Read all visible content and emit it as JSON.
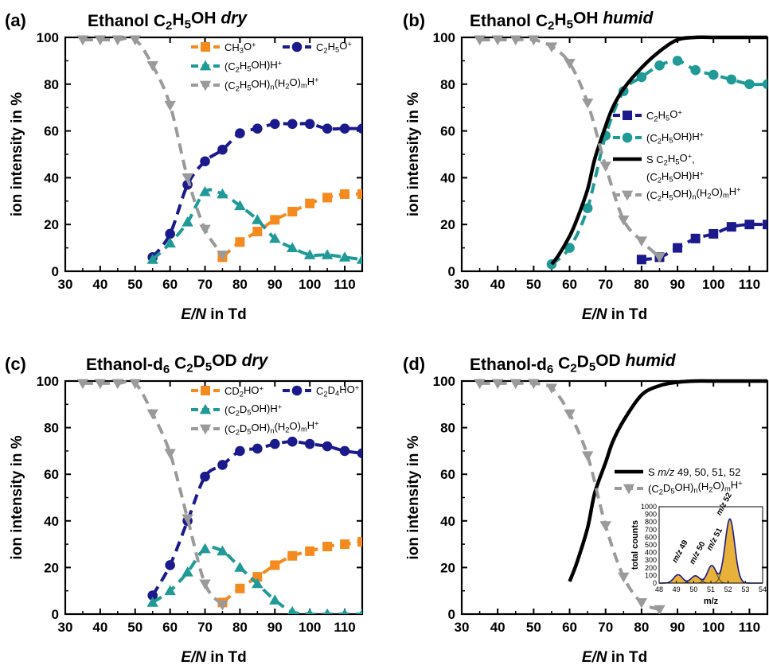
{
  "colors": {
    "orange": "#f58a1f",
    "navy": "#1a1a8c",
    "teal": "#1f9a96",
    "gray": "#9a9a9a",
    "black": "#000000",
    "inset_fill": "#e8b23a",
    "inset_line": "#1a1a8c"
  },
  "chart_data": [
    {
      "type": "line",
      "panel": "(a)",
      "title": [
        "Ethanol C",
        "2",
        "H",
        "5",
        "OH ",
        "dry"
      ],
      "xlabel": [
        "E/N",
        " in Td"
      ],
      "ylabel": "ion intensity in %",
      "xlim": [
        30,
        115
      ],
      "ylim": [
        0,
        100
      ],
      "xticks": [
        30,
        40,
        50,
        60,
        70,
        80,
        90,
        100,
        110
      ],
      "yticks": [
        0,
        20,
        40,
        60,
        80,
        100
      ],
      "legend_position": "top-right",
      "legend_cols": 2,
      "series": [
        {
          "name": [
            "CH",
            "3",
            "O",
            "+"
          ],
          "color": "orange",
          "marker": "square",
          "x": [
            75,
            80,
            85,
            90,
            95,
            100,
            105,
            110,
            115
          ],
          "y": [
            6,
            12.5,
            17,
            22,
            25.5,
            29,
            31.5,
            33,
            33
          ]
        },
        {
          "name": [
            "C",
            "2",
            "H",
            "5",
            "O",
            "+"
          ],
          "color": "navy",
          "marker": "circle",
          "x": [
            55,
            60,
            65,
            70,
            75,
            80,
            85,
            90,
            95,
            100,
            105,
            110,
            115
          ],
          "y": [
            6,
            16,
            37,
            47,
            52,
            59,
            61,
            63,
            63,
            63,
            61,
            61,
            61
          ]
        },
        {
          "name": [
            "(C",
            "2",
            "H",
            "5",
            "OH)H",
            "+"
          ],
          "color": "teal",
          "marker": "triangle-up",
          "x": [
            55,
            60,
            65,
            70,
            75,
            80,
            85,
            90,
            95,
            100,
            105,
            110,
            115
          ],
          "y": [
            5,
            12,
            21,
            34,
            33,
            28,
            22,
            14,
            10,
            7,
            7,
            6,
            5
          ]
        },
        {
          "name": [
            "(C",
            "2",
            "H",
            "5",
            "OH)",
            "n",
            "(H",
            "2",
            "O)",
            "m",
            "H",
            "+"
          ],
          "color": "gray",
          "marker": "triangle-down",
          "x": [
            35,
            40,
            45,
            50,
            55,
            60,
            65,
            70,
            75
          ],
          "y": [
            99,
            99,
            99,
            99,
            88,
            71,
            40,
            18,
            7
          ]
        }
      ]
    },
    {
      "type": "line",
      "panel": "(b)",
      "title": [
        "Ethanol C",
        "2",
        "H",
        "5",
        "OH ",
        "humid"
      ],
      "xlabel": [
        "E/N",
        " in Td"
      ],
      "ylabel": "ion intensity in %",
      "xlim": [
        30,
        115
      ],
      "ylim": [
        0,
        100
      ],
      "xticks": [
        30,
        40,
        50,
        60,
        70,
        80,
        90,
        100,
        110
      ],
      "yticks": [
        0,
        20,
        40,
        60,
        80,
        100
      ],
      "legend_position": "center-right",
      "legend_cols": 1,
      "series": [
        {
          "name": [
            "C",
            "2",
            "H",
            "5",
            "O",
            "+"
          ],
          "color": "navy",
          "marker": "square",
          "x": [
            80,
            85,
            90,
            95,
            100,
            105,
            110,
            115
          ],
          "y": [
            5,
            6,
            10,
            14,
            16,
            19,
            20,
            20
          ]
        },
        {
          "name": [
            "(C",
            "2",
            "H",
            "5",
            "OH)H",
            "+"
          ],
          "color": "teal",
          "marker": "circle",
          "x": [
            55,
            60,
            65,
            70,
            75,
            80,
            85,
            90,
            95,
            100,
            105,
            110,
            115
          ],
          "y": [
            3,
            10,
            27,
            58,
            77,
            83,
            88,
            90,
            86,
            84,
            82,
            80,
            80
          ]
        },
        {
          "name": [
            "S C",
            "2",
            "H",
            "5",
            "O",
            "+",
            ",",
            "(C",
            "2",
            "H",
            "5",
            "OH)H",
            "+"
          ],
          "color": "black",
          "marker": "none",
          "solid": true,
          "x": [
            55,
            57,
            60,
            62,
            65,
            67,
            70,
            72,
            75,
            80,
            85,
            90,
            95,
            100,
            105,
            110,
            115
          ],
          "y": [
            3,
            7,
            15,
            22,
            35,
            48,
            62,
            70,
            78,
            87,
            94,
            99,
            100,
            100,
            100,
            100,
            100
          ]
        },
        {
          "name": [
            "(C",
            "2",
            "H",
            "5",
            "OH)",
            "n",
            "(H",
            "2",
            "O)",
            "m",
            "H",
            "+"
          ],
          "color": "gray",
          "marker": "triangle-down",
          "x": [
            35,
            40,
            45,
            50,
            55,
            60,
            65,
            70,
            75,
            80,
            85
          ],
          "y": [
            99,
            99,
            99,
            99,
            96,
            89,
            72,
            45,
            22,
            13,
            6
          ]
        }
      ]
    },
    {
      "type": "line",
      "panel": "(c)",
      "title": [
        "Ethanol-d",
        "6",
        " C",
        "2",
        "D",
        "5",
        "OD ",
        "dry"
      ],
      "xlabel": [
        "E/N",
        " in Td"
      ],
      "ylabel": "ion intensity in %",
      "xlim": [
        30,
        115
      ],
      "ylim": [
        0,
        100
      ],
      "xticks": [
        30,
        40,
        50,
        60,
        70,
        80,
        90,
        100,
        110
      ],
      "yticks": [
        0,
        20,
        40,
        60,
        80,
        100
      ],
      "legend_position": "top-right",
      "legend_cols": 2,
      "series": [
        {
          "name": [
            "CD",
            "2",
            "HO",
            "+"
          ],
          "color": "orange",
          "marker": "square",
          "x": [
            75,
            80,
            85,
            90,
            95,
            100,
            105,
            110,
            115
          ],
          "y": [
            5,
            11,
            16,
            21,
            25,
            27,
            29,
            30,
            31
          ]
        },
        {
          "name": [
            "C",
            "2",
            "D",
            "4",
            "HO",
            "+"
          ],
          "color": "navy",
          "marker": "circle",
          "x": [
            55,
            60,
            65,
            70,
            75,
            80,
            85,
            90,
            95,
            100,
            105,
            110,
            115
          ],
          "y": [
            8,
            21,
            40,
            59,
            64,
            70,
            71,
            73,
            74,
            73,
            72,
            70,
            69
          ]
        },
        {
          "name": [
            "(C",
            "2",
            "D",
            "5",
            "OH)H",
            "+"
          ],
          "color": "teal",
          "marker": "triangle-up",
          "x": [
            55,
            60,
            65,
            70,
            75,
            80,
            85,
            90,
            95,
            100,
            105,
            110,
            115
          ],
          "y": [
            5,
            10,
            18,
            28,
            27,
            20,
            13,
            6,
            1,
            0,
            0,
            0,
            0
          ]
        },
        {
          "name": [
            "(C",
            "2",
            "D",
            "5",
            "OH)",
            "n",
            "(H",
            "2",
            "O)",
            "m",
            "H",
            "+"
          ],
          "color": "gray",
          "marker": "triangle-down",
          "x": [
            35,
            40,
            45,
            50,
            55,
            60,
            65,
            70,
            75
          ],
          "y": [
            99,
            99,
            99,
            99,
            86,
            69,
            41,
            13,
            4
          ]
        }
      ]
    },
    {
      "type": "line",
      "panel": "(d)",
      "title": [
        "Ethanol-d",
        "6",
        " C",
        "2",
        "D",
        "5",
        "OD ",
        "humid"
      ],
      "xlabel": [
        "E/N",
        " in Td"
      ],
      "ylabel": "ion intensity in %",
      "xlim": [
        30,
        115
      ],
      "ylim": [
        0,
        100
      ],
      "xticks": [
        30,
        40,
        50,
        60,
        70,
        80,
        90,
        100,
        110
      ],
      "yticks": [
        0,
        20,
        40,
        60,
        80,
        100
      ],
      "legend_position": "center-right",
      "legend_cols": 1,
      "series": [
        {
          "name": [
            "S ",
            "m/z",
            " 49, 50, 51, 52"
          ],
          "color": "black",
          "marker": "none",
          "solid": true,
          "x": [
            60,
            62,
            65,
            67,
            70,
            72,
            75,
            80,
            85,
            90,
            95,
            100,
            105,
            110,
            115
          ],
          "y": [
            14,
            22,
            37,
            52,
            65,
            74,
            83,
            94,
            98,
            99.5,
            100,
            100,
            100,
            100,
            100
          ]
        },
        {
          "name": [
            "(C",
            "2",
            "D",
            "5",
            "OH)",
            "n",
            "(H",
            "2",
            "O)",
            "m",
            "H",
            "+"
          ],
          "color": "gray",
          "marker": "triangle-down",
          "x": [
            35,
            40,
            45,
            50,
            55,
            60,
            65,
            70,
            75,
            80,
            85
          ],
          "y": [
            99,
            99,
            99,
            99,
            97,
            86,
            68,
            38,
            16,
            5,
            2
          ]
        }
      ],
      "inset": {
        "type": "area",
        "xlabel": "m/z",
        "ylabel": "total counts",
        "xlim": [
          48,
          54
        ],
        "ylim": [
          0,
          1000
        ],
        "xticks": [
          48,
          49,
          50,
          51,
          52,
          53,
          54
        ],
        "yticks": [
          0,
          100,
          200,
          300,
          400,
          500,
          600,
          700,
          800,
          900,
          1000
        ],
        "peaks": [
          {
            "label": [
              "m/z",
              " 49"
            ],
            "x": 49.1,
            "height": 110,
            "width": 0.25
          },
          {
            "label": [
              "m/z",
              " 50"
            ],
            "x": 50.1,
            "height": 95,
            "width": 0.25
          },
          {
            "label": [
              "m/z",
              " 51"
            ],
            "x": 51.05,
            "height": 230,
            "width": 0.25
          },
          {
            "label": [
              "m/z",
              " 52"
            ],
            "x": 52.1,
            "height": 840,
            "width": 0.28
          }
        ]
      }
    }
  ]
}
